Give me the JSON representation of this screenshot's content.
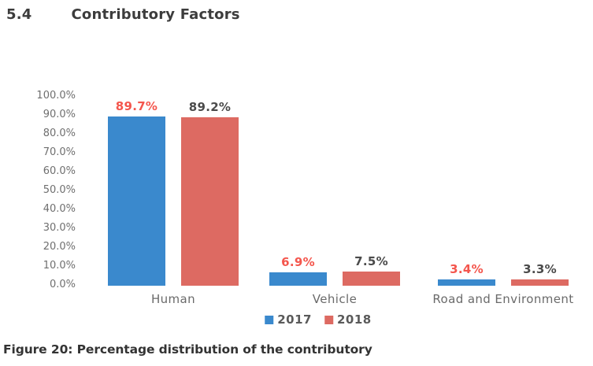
{
  "page": {
    "section_number": "5.4",
    "section_title": "Contributory Factors",
    "caption": "Figure 20: Percentage distribution of the contributory"
  },
  "chart_data": {
    "type": "bar",
    "title": "",
    "categories": [
      "Human",
      "Vehicle",
      "Road and Environment"
    ],
    "series": [
      {
        "name": "2017",
        "color": "#3a89cd",
        "label_color": "#f4564d",
        "values": [
          89.7,
          6.9,
          3.4
        ],
        "labels": [
          "89.7%",
          "6.9%",
          "3.4%"
        ]
      },
      {
        "name": "2018",
        "color": "#dd6a62",
        "label_color": "#4b4b4b",
        "values": [
          89.2,
          7.5,
          3.3
        ],
        "labels": [
          "89.2%",
          "7.5%",
          "3.3%"
        ]
      }
    ],
    "y_axis": {
      "min": 0,
      "max": 100,
      "step": 10,
      "tick_labels": [
        "0.0%",
        "10.0%",
        "20.0%",
        "30.0%",
        "40.0%",
        "50.0%",
        "60.0%",
        "70.0%",
        "80.0%",
        "90.0%",
        "100.0%"
      ]
    },
    "legend": {
      "position": "bottom",
      "entries": [
        "2017",
        "2018"
      ]
    },
    "grid": false
  }
}
